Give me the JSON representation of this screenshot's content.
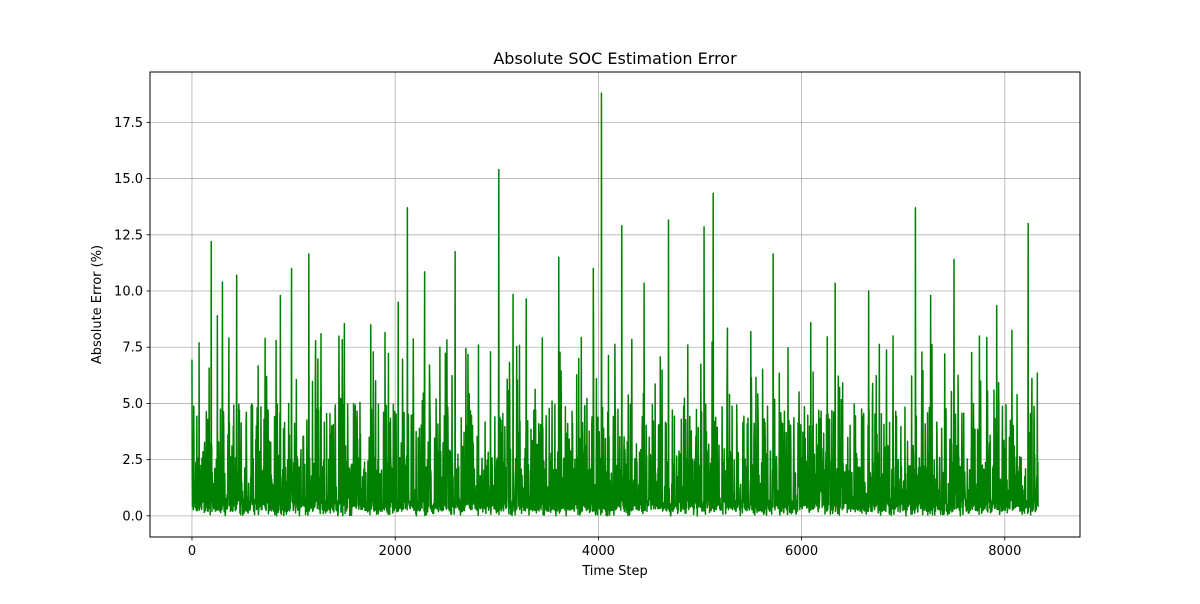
{
  "chart_data": {
    "type": "line",
    "title": "Absolute SOC Estimation Error",
    "xlabel": "Time Step",
    "ylabel": "Absolute Error (%)",
    "xlim": [
      -413,
      8740
    ],
    "ylim": [
      -0.94,
      19.74
    ],
    "xticks": [
      0,
      2000,
      4000,
      6000,
      8000
    ],
    "xtick_labels": [
      "0",
      "2000",
      "4000",
      "6000",
      "8000"
    ],
    "yticks": [
      0.0,
      2.5,
      5.0,
      7.5,
      10.0,
      12.5,
      15.0,
      17.5
    ],
    "ytick_labels": [
      "0.0",
      "2.5",
      "5.0",
      "7.5",
      "10.0",
      "12.5",
      "15.0",
      "17.5"
    ],
    "grid": true,
    "x_range": [
      0,
      8330
    ],
    "peaks": [
      {
        "x": 0,
        "y": 6.95
      },
      {
        "x": 70,
        "y": 7.7
      },
      {
        "x": 190,
        "y": 12.2
      },
      {
        "x": 250,
        "y": 8.9
      },
      {
        "x": 300,
        "y": 10.4
      },
      {
        "x": 440,
        "y": 10.7
      },
      {
        "x": 720,
        "y": 7.9
      },
      {
        "x": 870,
        "y": 9.8
      },
      {
        "x": 980,
        "y": 11.0
      },
      {
        "x": 1150,
        "y": 11.65
      },
      {
        "x": 1270,
        "y": 8.1
      },
      {
        "x": 1500,
        "y": 8.55
      },
      {
        "x": 1760,
        "y": 8.5
      },
      {
        "x": 1900,
        "y": 8.15
      },
      {
        "x": 2030,
        "y": 9.5
      },
      {
        "x": 2120,
        "y": 13.7
      },
      {
        "x": 2290,
        "y": 10.85
      },
      {
        "x": 2440,
        "y": 7.5
      },
      {
        "x": 2590,
        "y": 11.75
      },
      {
        "x": 2820,
        "y": 7.6
      },
      {
        "x": 3020,
        "y": 15.4
      },
      {
        "x": 3160,
        "y": 9.85
      },
      {
        "x": 3290,
        "y": 9.65
      },
      {
        "x": 3610,
        "y": 11.5
      },
      {
        "x": 3950,
        "y": 11.0
      },
      {
        "x": 4030,
        "y": 18.8
      },
      {
        "x": 4230,
        "y": 12.9
      },
      {
        "x": 4450,
        "y": 10.35
      },
      {
        "x": 4690,
        "y": 13.15
      },
      {
        "x": 4880,
        "y": 7.6
      },
      {
        "x": 5040,
        "y": 12.85
      },
      {
        "x": 5130,
        "y": 14.35
      },
      {
        "x": 5270,
        "y": 8.35
      },
      {
        "x": 5500,
        "y": 8.2
      },
      {
        "x": 5720,
        "y": 11.65
      },
      {
        "x": 6090,
        "y": 8.6
      },
      {
        "x": 6330,
        "y": 10.35
      },
      {
        "x": 6660,
        "y": 10.0
      },
      {
        "x": 6900,
        "y": 8.0
      },
      {
        "x": 7120,
        "y": 13.7
      },
      {
        "x": 7270,
        "y": 9.8
      },
      {
        "x": 7500,
        "y": 11.4
      },
      {
        "x": 7750,
        "y": 8.0
      },
      {
        "x": 7920,
        "y": 9.35
      },
      {
        "x": 8070,
        "y": 8.25
      },
      {
        "x": 8230,
        "y": 13.0
      },
      {
        "x": 8320,
        "y": 6.35
      }
    ],
    "series": [
      {
        "color": "#008000",
        "typical_range": [
          0.0,
          6.0
        ]
      }
    ]
  }
}
